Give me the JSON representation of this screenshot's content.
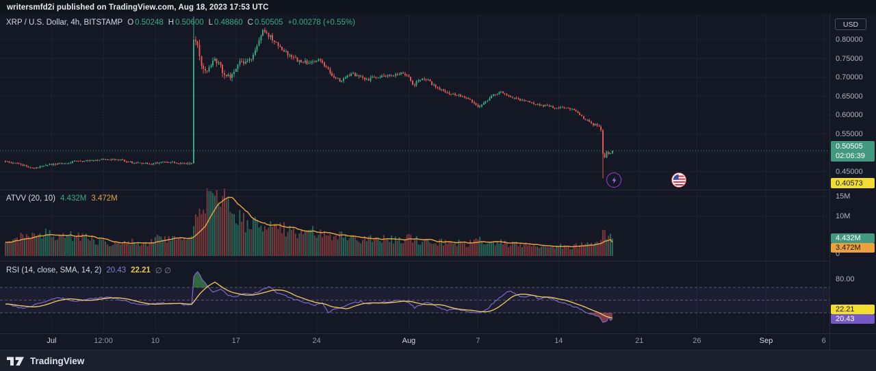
{
  "topbar": {
    "text": "writersmfd2i published on TradingView.com, Aug 18, 2023 17:53 UTC"
  },
  "symbol_legend": {
    "title": "XRP / U.S. Dollar, 4h, BITSTAMP",
    "o_label": "O",
    "o": "0.50248",
    "h_label": "H",
    "h": "0.50600",
    "l_label": "L",
    "l": "0.48860",
    "c_label": "C",
    "c": "0.50505",
    "change": "+0.00278 (+0.55%)"
  },
  "volume_legend": {
    "title": "ATVV (20, 10)",
    "volume_value": "4.432M",
    "ma_value": "3.472M"
  },
  "rsi_legend": {
    "title": "RSI (14, close, SMA, 14, 2)",
    "rsi_value": "20.43",
    "sma_value": "22.21",
    "empty": "∅  ∅"
  },
  "price_axis": {
    "currency_button": "USD",
    "labels": [
      "0.80000",
      "0.75000",
      "0.70000",
      "0.65000",
      "0.60000",
      "0.55000",
      "0.45000"
    ],
    "price_badge": {
      "price": "0.50505",
      "countdown": "02:06:39"
    },
    "low_badge": "0.40573"
  },
  "volume_axis": {
    "ticks": [
      {
        "label": "15M",
        "v": 15
      },
      {
        "label": "10M",
        "v": 10
      },
      {
        "label": "0",
        "v": 0
      }
    ],
    "volume_badge": "4.432M",
    "ma_badge": "3.472M"
  },
  "rsi_axis": {
    "ticks": [
      {
        "label": "80.00",
        "v": 80
      }
    ],
    "sma_badge": "22.21",
    "rsi_badge": "20.43"
  },
  "time_axis": {
    "ticks": [
      {
        "label": "Jul",
        "d": 4,
        "major": true
      },
      {
        "label": "12:00",
        "d": 8.5,
        "major": false
      },
      {
        "label": "10",
        "d": 13,
        "major": false
      },
      {
        "label": "17",
        "d": 20,
        "major": false
      },
      {
        "label": "24",
        "d": 27,
        "major": false
      },
      {
        "label": "Aug",
        "d": 35,
        "major": true
      },
      {
        "label": "7",
        "d": 41,
        "major": false
      },
      {
        "label": "14",
        "d": 48,
        "major": false
      },
      {
        "label": "21",
        "d": 55,
        "major": false
      },
      {
        "label": "26",
        "d": 60,
        "major": false
      },
      {
        "label": "Sep",
        "d": 66,
        "major": true
      },
      {
        "label": "6",
        "d": 71,
        "major": false
      }
    ]
  },
  "markers": [
    {
      "name": "flash",
      "x": 897,
      "y": 263
    },
    {
      "name": "us-flag",
      "x": 992,
      "y": 263
    }
  ],
  "footer": {
    "brand": "TradingView"
  },
  "colors": {
    "bg": "#141824",
    "up": "#36a581",
    "down": "#e25550",
    "vol_up": "rgba(54,165,129,0.55)",
    "vol_down": "rgba(226,85,80,0.5)",
    "vol_ma": "#e3a13e",
    "rsi": "#7b68c9",
    "rsi_sma": "#e6c45e",
    "rsi_fill_high": "rgba(64,148,80,0.65)",
    "rsi_fill_low": "rgba(205,80,95,0.6)",
    "rsi_band": "rgba(126,87,194,0.09)",
    "grid": "rgba(160,175,210,0.07)",
    "dashed": "rgba(200,205,225,0.35)",
    "badge_green": "#42997f",
    "badge_yellow": "#f2dd30",
    "badge_orange": "#eda13c",
    "badge_purple": "#7458c8",
    "price_line": "#36a581"
  },
  "chart_data": {
    "type": "candlestick",
    "symbol": "XRP/USD",
    "exchange": "BITSTAMP",
    "timeframe": "4h",
    "start_date": "2023-06-27",
    "end_date": "2023-08-18 16:00 UTC",
    "candles_per_day": 6,
    "last_ohlc": {
      "open": 0.50248,
      "high": 0.506,
      "low": 0.4886,
      "close": 0.50505,
      "change": 0.00278,
      "change_pct": 0.55
    },
    "ylim": [
      0.402,
      0.866
    ],
    "price_gridlines": [
      0.8,
      0.75,
      0.7,
      0.65,
      0.6,
      0.55,
      0.5,
      0.45
    ],
    "price_path_anchors": [
      [
        0,
        0.477
      ],
      [
        1,
        0.47
      ],
      [
        2.5,
        0.458
      ],
      [
        3.5,
        0.468
      ],
      [
        5,
        0.471
      ],
      [
        6,
        0.477
      ],
      [
        8,
        0.481
      ],
      [
        9.5,
        0.483
      ],
      [
        11,
        0.474
      ],
      [
        12.5,
        0.47
      ],
      [
        14,
        0.475
      ],
      [
        15.5,
        0.471
      ],
      [
        16.167,
        0.47
      ],
      [
        16.333,
        0.8
      ],
      [
        16.667,
        0.778
      ],
      [
        17,
        0.737
      ],
      [
        17.333,
        0.712
      ],
      [
        17.667,
        0.726
      ],
      [
        18,
        0.744
      ],
      [
        18.5,
        0.741
      ],
      [
        19,
        0.705
      ],
      [
        19.5,
        0.701
      ],
      [
        20,
        0.729
      ],
      [
        20.5,
        0.744
      ],
      [
        21,
        0.739
      ],
      [
        21.5,
        0.757
      ],
      [
        22,
        0.798
      ],
      [
        22.417,
        0.828
      ],
      [
        22.833,
        0.813
      ],
      [
        23.333,
        0.794
      ],
      [
        24,
        0.775
      ],
      [
        24.667,
        0.756
      ],
      [
        25.5,
        0.743
      ],
      [
        26.5,
        0.738
      ],
      [
        27.333,
        0.747
      ],
      [
        28,
        0.721
      ],
      [
        28.5,
        0.701
      ],
      [
        29,
        0.691
      ],
      [
        29.5,
        0.7
      ],
      [
        30,
        0.711
      ],
      [
        30.667,
        0.701
      ],
      [
        31.5,
        0.695
      ],
      [
        32.5,
        0.702
      ],
      [
        33.5,
        0.706
      ],
      [
        34.5,
        0.711
      ],
      [
        35,
        0.701
      ],
      [
        35.417,
        0.679
      ],
      [
        35.833,
        0.694
      ],
      [
        36.5,
        0.696
      ],
      [
        37.5,
        0.671
      ],
      [
        38.5,
        0.656
      ],
      [
        39.5,
        0.651
      ],
      [
        40.333,
        0.641
      ],
      [
        41,
        0.622
      ],
      [
        41.5,
        0.631
      ],
      [
        42.333,
        0.654
      ],
      [
        43,
        0.661
      ],
      [
        43.667,
        0.651
      ],
      [
        44.5,
        0.641
      ],
      [
        45.5,
        0.633
      ],
      [
        46.5,
        0.626
      ],
      [
        47.5,
        0.621
      ],
      [
        48.5,
        0.618
      ],
      [
        49.333,
        0.614
      ],
      [
        49.833,
        0.599
      ],
      [
        50.333,
        0.589
      ],
      [
        50.833,
        0.576
      ],
      [
        51.333,
        0.574
      ],
      [
        51.667,
        0.562
      ],
      [
        51.833,
        0.497
      ],
      [
        52,
        0.488
      ],
      [
        52.167,
        0.502
      ],
      [
        52.333,
        0.496
      ],
      [
        52.5,
        0.5
      ],
      [
        52.667,
        0.50505
      ]
    ],
    "volatility_anchors": [
      [
        0,
        0.0035
      ],
      [
        16.1,
        0.0035
      ],
      [
        16.5,
        0.016
      ],
      [
        18,
        0.013
      ],
      [
        22,
        0.011
      ],
      [
        26,
        0.008
      ],
      [
        30,
        0.007
      ],
      [
        35,
        0.0065
      ],
      [
        40,
        0.005
      ],
      [
        46,
        0.004
      ],
      [
        50,
        0.0045
      ],
      [
        51.6,
        0.005
      ],
      [
        52.667,
        0.004
      ]
    ],
    "spike": {
      "d": 16.333,
      "high": 0.862,
      "note": "Jul 13 rally candle"
    },
    "crash": {
      "d": 51.833,
      "low": 0.432,
      "note": "Aug 17 sell-off candle"
    },
    "last_close": 0.50505,
    "volume": {
      "units": "millions",
      "current": 4.432,
      "ma_current": 3.472,
      "ylim": [
        0,
        16
      ],
      "gridlines": [
        15,
        10
      ],
      "anchors": [
        [
          0,
          3.2
        ],
        [
          1,
          4.4
        ],
        [
          2,
          5.1
        ],
        [
          3,
          5.6
        ],
        [
          4,
          5.2
        ],
        [
          5,
          4.7
        ],
        [
          6,
          5.0
        ],
        [
          7,
          4.4
        ],
        [
          8,
          3.9
        ],
        [
          9,
          3.3
        ],
        [
          10,
          2.9
        ],
        [
          11,
          3.4
        ],
        [
          12,
          3.0
        ],
        [
          13,
          4.3
        ],
        [
          14,
          4.5
        ],
        [
          15,
          4.0
        ],
        [
          15.8,
          3.5
        ],
        [
          16.2,
          4.0
        ],
        [
          16.5,
          8.5
        ],
        [
          17,
          11.5
        ],
        [
          17.5,
          13.5
        ],
        [
          18,
          14.3
        ],
        [
          18.7,
          14.0
        ],
        [
          19.3,
          13.2
        ],
        [
          20,
          10.5
        ],
        [
          20.7,
          8.5
        ],
        [
          21.3,
          7.6
        ],
        [
          22,
          8.2
        ],
        [
          22.7,
          8.0
        ],
        [
          23.3,
          7.4
        ],
        [
          24,
          6.8
        ],
        [
          25,
          6.2
        ],
        [
          26,
          6.0
        ],
        [
          27,
          6.2
        ],
        [
          28,
          5.6
        ],
        [
          29,
          5.0
        ],
        [
          30,
          4.6
        ],
        [
          31,
          4.3
        ],
        [
          32,
          4.1
        ],
        [
          33,
          4.3
        ],
        [
          34,
          4.1
        ],
        [
          35,
          4.4
        ],
        [
          36,
          3.9
        ],
        [
          37,
          3.6
        ],
        [
          38,
          3.7
        ],
        [
          39,
          3.3
        ],
        [
          40,
          3.1
        ],
        [
          41,
          3.9
        ],
        [
          42,
          3.5
        ],
        [
          43,
          3.3
        ],
        [
          44,
          2.9
        ],
        [
          45,
          2.7
        ],
        [
          46,
          2.5
        ],
        [
          47,
          2.7
        ],
        [
          48,
          2.5
        ],
        [
          49,
          2.3
        ],
        [
          49.7,
          2.6
        ],
        [
          50.3,
          3.0
        ],
        [
          51,
          3.6
        ],
        [
          51.5,
          4.2
        ],
        [
          51.833,
          6.6
        ],
        [
          52.167,
          5.2
        ],
        [
          52.5,
          4.7
        ],
        [
          52.667,
          4.432
        ]
      ]
    },
    "rsi": {
      "current": 20.43,
      "sma_current": 22.21,
      "bands": [
        70,
        50,
        30
      ],
      "visible_axis_label": 80,
      "anchors": [
        [
          0,
          44
        ],
        [
          1.5,
          37
        ],
        [
          3,
          45
        ],
        [
          4.5,
          55
        ],
        [
          6,
          48
        ],
        [
          7.5,
          52
        ],
        [
          9,
          55
        ],
        [
          10.5,
          48
        ],
        [
          12,
          42
        ],
        [
          13.5,
          46
        ],
        [
          15,
          44
        ],
        [
          16.167,
          42
        ],
        [
          16.333,
          88
        ],
        [
          16.667,
          95
        ],
        [
          17,
          85
        ],
        [
          17.5,
          72
        ],
        [
          18,
          63
        ],
        [
          18.7,
          67
        ],
        [
          19.3,
          58
        ],
        [
          20,
          55
        ],
        [
          20.7,
          61
        ],
        [
          21.3,
          58
        ],
        [
          22,
          64
        ],
        [
          22.9,
          72
        ],
        [
          23.5,
          62
        ],
        [
          24.2,
          58
        ],
        [
          25,
          52
        ],
        [
          26,
          46
        ],
        [
          26.8,
          42
        ],
        [
          27.5,
          46
        ],
        [
          28,
          30
        ],
        [
          28.5,
          35
        ],
        [
          29.2,
          39
        ],
        [
          30,
          45
        ],
        [
          30.8,
          48
        ],
        [
          31.5,
          44
        ],
        [
          32.5,
          46
        ],
        [
          33.5,
          48
        ],
        [
          34.3,
          50
        ],
        [
          35,
          46
        ],
        [
          35.5,
          38
        ],
        [
          36.2,
          44
        ],
        [
          36.8,
          46
        ],
        [
          37.5,
          39
        ],
        [
          38.3,
          33
        ],
        [
          39,
          36
        ],
        [
          40,
          33
        ],
        [
          41,
          30
        ],
        [
          41.7,
          35
        ],
        [
          42.5,
          48
        ],
        [
          43.3,
          60
        ],
        [
          43.8,
          66
        ],
        [
          44.3,
          58
        ],
        [
          45,
          55
        ],
        [
          45.7,
          58
        ],
        [
          46.3,
          52
        ],
        [
          47,
          55
        ],
        [
          47.7,
          50
        ],
        [
          48.5,
          45
        ],
        [
          49.2,
          41
        ],
        [
          49.8,
          37
        ],
        [
          50.4,
          30
        ],
        [
          51,
          27
        ],
        [
          51.5,
          24
        ],
        [
          51.833,
          15
        ],
        [
          52.167,
          17.5
        ],
        [
          52.333,
          22
        ],
        [
          52.5,
          18.5
        ],
        [
          52.667,
          20.43
        ]
      ]
    }
  }
}
